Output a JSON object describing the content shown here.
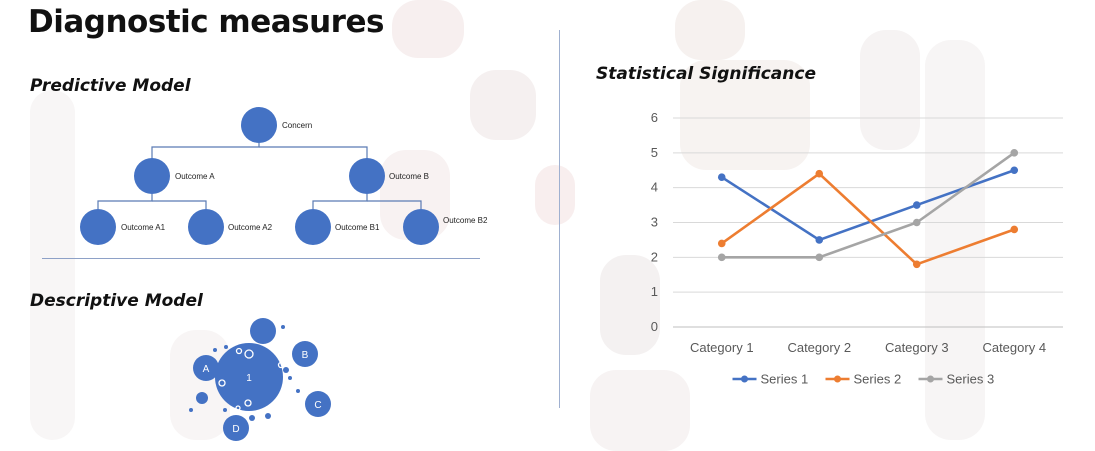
{
  "slide": {
    "title": "Diagnostic measures"
  },
  "colors": {
    "node_blue": "#4472C4",
    "connector": "#5B7BB4",
    "background_decor": "#f6eeee"
  },
  "predictive_model": {
    "title": "Predictive Model",
    "nodes": {
      "root": "Concern",
      "a": "Outcome A",
      "b": "Outcome B",
      "a1": "Outcome A1",
      "a2": "Outcome A2",
      "b1": "Outcome B1",
      "b2": "Outcome B2"
    }
  },
  "descriptive_model": {
    "title": "Descriptive Model",
    "bubbles": {
      "center": "1",
      "a": "A",
      "b": "B",
      "c": "C",
      "d": "D"
    }
  },
  "statistical_significance": {
    "title": "Statistical Significance"
  },
  "chart_data": {
    "type": "line",
    "categories": [
      "Category 1",
      "Category 2",
      "Category 3",
      "Category 4"
    ],
    "series": [
      {
        "name": "Series 1",
        "color": "#4472C4",
        "values": [
          4.3,
          2.5,
          3.5,
          4.5
        ]
      },
      {
        "name": "Series 2",
        "color": "#ED7D31",
        "values": [
          2.4,
          4.4,
          1.8,
          2.8
        ]
      },
      {
        "name": "Series 3",
        "color": "#A5A5A5",
        "values": [
          2,
          2,
          3,
          5
        ]
      }
    ],
    "ylim": [
      0,
      6
    ],
    "yticks": [
      "0",
      "1",
      "2",
      "3",
      "4",
      "5",
      "6"
    ],
    "grid": true,
    "legend": "bottom"
  }
}
